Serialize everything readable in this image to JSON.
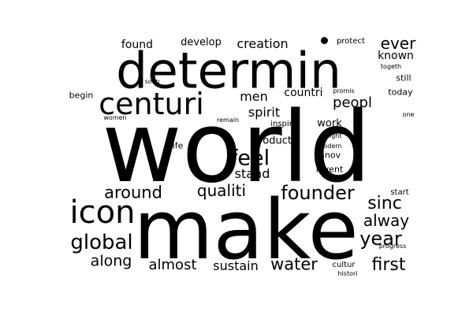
{
  "colors": {
    "background": "#ffffff",
    "text": "#000000"
  },
  "words": {
    "world": "world",
    "make": "make",
    "determin": "determin",
    "centuri": "centuri",
    "icon": "icon",
    "founder": "founder",
    "global": "global",
    "feel": "feel",
    "around": "around",
    "qualiti": "qualiti",
    "sinc": "sinc",
    "year": "year",
    "alway": "alway",
    "first": "first",
    "along": "along",
    "almost": "almost",
    "sustain": "sustain",
    "water": "water",
    "peopl": "peopl",
    "creation": "creation",
    "ever": "ever",
    "men": "men",
    "spirit": "spirit",
    "stand": "stand",
    "product": "product",
    "countri": "countri",
    "found": "found",
    "develop": "develop",
    "known": "known",
    "work": "work",
    "still": "still",
    "today": "today",
    "begin": "begin",
    "innov": "innov",
    "invent": "invent",
    "inspir": "inspir",
    "life": "life",
    "protect": "protect",
    "togeth": "togeth",
    "soon": "soon",
    "promis": "promis",
    "women": "women",
    "remain": "remain",
    "one": "one",
    "insight": "insight",
    "modern": "modern",
    "start": "start",
    "progress": "progress",
    "cultur": "cultur",
    "histori": "histori"
  }
}
